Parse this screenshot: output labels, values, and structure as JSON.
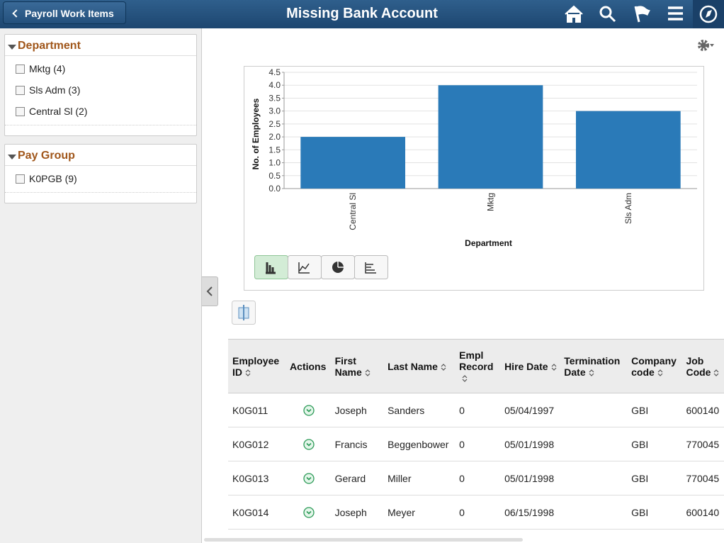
{
  "header": {
    "back": "Payroll Work Items",
    "title": "Missing Bank Account"
  },
  "facets": [
    {
      "title": "Department",
      "items": [
        "Mktg (4)",
        "Sls Adm (3)",
        "Central Sl (2)"
      ]
    },
    {
      "title": "Pay Group",
      "items": [
        "K0PGB (9)"
      ]
    }
  ],
  "chart_data": {
    "type": "bar",
    "x_label": "Department",
    "y_label": "No. of Employees",
    "categories": [
      "Central Sl",
      "Mktg",
      "Sls Adm"
    ],
    "values": [
      2,
      4,
      3
    ],
    "color": "#2a7ab8",
    "ylim": [
      0,
      4.5
    ],
    "yticks": [
      {
        "value": 0,
        "label": "0.0"
      },
      {
        "value": 0.5,
        "label": "0.5"
      },
      {
        "value": 1,
        "label": "1.0"
      },
      {
        "value": 1.5,
        "label": "1.5"
      },
      {
        "value": 2,
        "label": "2.0"
      },
      {
        "value": 2.5,
        "label": "2.5"
      },
      {
        "value": 3,
        "label": "3.0"
      },
      {
        "value": 3.5,
        "label": "3.5"
      },
      {
        "value": 4,
        "label": "4.0"
      },
      {
        "value": 4.5,
        "label": "4.5"
      }
    ],
    "grid": true
  },
  "table": {
    "columns": [
      "Employee ID",
      "Actions",
      "First Name",
      "Last Name",
      "Empl Record",
      "Hire Date",
      "Termination Date",
      "Company code",
      "Job Code"
    ],
    "rows": [
      [
        "K0G011",
        "",
        "Joseph",
        "Sanders",
        "0",
        "05/04/1997",
        "",
        "GBI",
        "600140"
      ],
      [
        "K0G012",
        "",
        "Francis",
        "Beggenbower",
        "0",
        "05/01/1998",
        "",
        "GBI",
        "770045"
      ],
      [
        "K0G013",
        "",
        "Gerard",
        "Miller",
        "0",
        "05/01/1998",
        "",
        "GBI",
        "770045"
      ],
      [
        "K0G014",
        "",
        "Joseph",
        "Meyer",
        "0",
        "06/15/1998",
        "",
        "GBI",
        "600140"
      ]
    ]
  }
}
